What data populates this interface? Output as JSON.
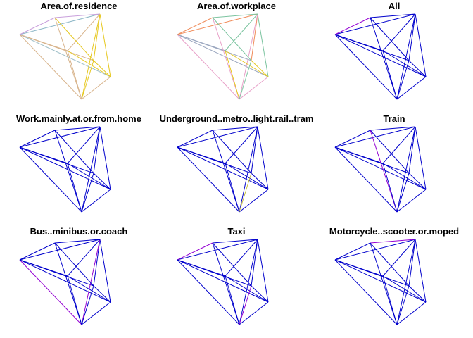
{
  "chart_data": {
    "type": "network-small-multiples",
    "layout": "3x3 grid",
    "node_count": 7,
    "default_edge_color": "#0000CC",
    "highlight_color": "#9400D3",
    "panels": [
      {
        "title": "Area.of.residence",
        "edges": [
          {
            "from": 0,
            "to": 1,
            "color": "#8FB8C8"
          },
          {
            "from": 0,
            "to": 2,
            "color": "#C9A0DC"
          },
          {
            "from": 0,
            "to": 3,
            "color": "#9FBFC8"
          },
          {
            "from": 0,
            "to": 4,
            "color": "#D8B48C"
          },
          {
            "from": 0,
            "to": 5,
            "color": "#D8B48C"
          },
          {
            "from": 0,
            "to": 6,
            "color": "#D8B48C"
          },
          {
            "from": 1,
            "to": 2,
            "color": "#C9A0DC"
          },
          {
            "from": 1,
            "to": 3,
            "color": "#E6C820"
          },
          {
            "from": 1,
            "to": 4,
            "color": "#E6C820"
          },
          {
            "from": 1,
            "to": 5,
            "color": "#E6C820"
          },
          {
            "from": 1,
            "to": 6,
            "color": "#D8B48C"
          },
          {
            "from": 2,
            "to": 4,
            "color": "#E6C820"
          },
          {
            "from": 2,
            "to": 5,
            "color": "#D8B48C"
          },
          {
            "from": 3,
            "to": 4,
            "color": "#E6C820"
          },
          {
            "from": 3,
            "to": 5,
            "color": "#D8B48C"
          },
          {
            "from": 3,
            "to": 6,
            "color": "#E6C820"
          },
          {
            "from": 4,
            "to": 5,
            "color": "#E6C820"
          },
          {
            "from": 5,
            "to": 6,
            "color": "#D8B48C"
          }
        ]
      },
      {
        "title": "Area.of.workplace",
        "edges": [
          {
            "from": 0,
            "to": 1,
            "color": "#F08C5A"
          },
          {
            "from": 0,
            "to": 2,
            "color": "#F08C5A"
          },
          {
            "from": 0,
            "to": 3,
            "color": "#9CA8C0"
          },
          {
            "from": 0,
            "to": 4,
            "color": "#9CA8C0"
          },
          {
            "from": 0,
            "to": 5,
            "color": "#E8A0C8"
          },
          {
            "from": 0,
            "to": 6,
            "color": "#9CA8C0"
          },
          {
            "from": 1,
            "to": 2,
            "color": "#7CC4A0"
          },
          {
            "from": 1,
            "to": 3,
            "color": "#7CC4A0"
          },
          {
            "from": 1,
            "to": 4,
            "color": "#F08C5A"
          },
          {
            "from": 1,
            "to": 5,
            "color": "#E8A0C8"
          },
          {
            "from": 1,
            "to": 6,
            "color": "#7CC4A0"
          },
          {
            "from": 2,
            "to": 4,
            "color": "#7CC4A0"
          },
          {
            "from": 2,
            "to": 5,
            "color": "#E8A0C8"
          },
          {
            "from": 3,
            "to": 4,
            "color": "#E6C820"
          },
          {
            "from": 3,
            "to": 5,
            "color": "#E8A0C8"
          },
          {
            "from": 3,
            "to": 6,
            "color": "#E6C820"
          },
          {
            "from": 4,
            "to": 5,
            "color": "#7CC4A0"
          },
          {
            "from": 5,
            "to": 6,
            "color": "#E6C820"
          }
        ]
      },
      {
        "title": "All",
        "edges": [
          {
            "from": 0,
            "to": 1,
            "color": "#0000CC"
          },
          {
            "from": 0,
            "to": 2,
            "color": "#9400D3"
          },
          {
            "from": 0,
            "to": 3,
            "color": "#0000CC"
          },
          {
            "from": 0,
            "to": 4,
            "color": "#0000CC"
          },
          {
            "from": 0,
            "to": 5,
            "color": "#0000CC"
          },
          {
            "from": 0,
            "to": 6,
            "color": "#0000CC"
          },
          {
            "from": 1,
            "to": 2,
            "color": "#0000CC"
          },
          {
            "from": 1,
            "to": 3,
            "color": "#0000CC"
          },
          {
            "from": 1,
            "to": 4,
            "color": "#0000CC"
          },
          {
            "from": 1,
            "to": 5,
            "color": "#0000CC"
          },
          {
            "from": 1,
            "to": 6,
            "color": "#0000CC"
          },
          {
            "from": 2,
            "to": 4,
            "color": "#0000CC"
          },
          {
            "from": 2,
            "to": 5,
            "color": "#0000CC"
          },
          {
            "from": 3,
            "to": 4,
            "color": "#0000CC"
          },
          {
            "from": 3,
            "to": 5,
            "color": "#0000CC"
          },
          {
            "from": 3,
            "to": 6,
            "color": "#0000CC"
          },
          {
            "from": 4,
            "to": 5,
            "color": "#0000CC"
          },
          {
            "from": 5,
            "to": 6,
            "color": "#0000CC"
          }
        ]
      },
      {
        "title": "Work.mainly.at.or.from.home",
        "edges": [
          {
            "from": 0,
            "to": 1,
            "color": "#0000CC"
          },
          {
            "from": 0,
            "to": 2,
            "color": "#0000CC"
          },
          {
            "from": 0,
            "to": 3,
            "color": "#0000CC"
          },
          {
            "from": 0,
            "to": 4,
            "color": "#0000CC"
          },
          {
            "from": 0,
            "to": 5,
            "color": "#0000CC"
          },
          {
            "from": 0,
            "to": 6,
            "color": "#0000CC"
          },
          {
            "from": 1,
            "to": 2,
            "color": "#0000CC"
          },
          {
            "from": 1,
            "to": 3,
            "color": "#0000CC"
          },
          {
            "from": 1,
            "to": 4,
            "color": "#0000CC"
          },
          {
            "from": 1,
            "to": 5,
            "color": "#0000CC"
          },
          {
            "from": 1,
            "to": 6,
            "color": "#0000CC"
          },
          {
            "from": 2,
            "to": 4,
            "color": "#0000CC"
          },
          {
            "from": 2,
            "to": 5,
            "color": "#0000CC"
          },
          {
            "from": 3,
            "to": 4,
            "color": "#0000CC"
          },
          {
            "from": 3,
            "to": 5,
            "color": "#0000CC"
          },
          {
            "from": 3,
            "to": 6,
            "color": "#0000CC"
          },
          {
            "from": 4,
            "to": 5,
            "color": "#0000CC"
          },
          {
            "from": 5,
            "to": 6,
            "color": "#0000CC"
          }
        ]
      },
      {
        "title": "Underground..metro..light.rail..tram",
        "edges": [
          {
            "from": 0,
            "to": 1,
            "color": "#0000CC"
          },
          {
            "from": 0,
            "to": 2,
            "color": "#0000CC"
          },
          {
            "from": 0,
            "to": 3,
            "color": "#0000CC"
          },
          {
            "from": 0,
            "to": 4,
            "color": "#0000CC"
          },
          {
            "from": 0,
            "to": 5,
            "color": "#0000CC"
          },
          {
            "from": 0,
            "to": 6,
            "color": "#0000CC"
          },
          {
            "from": 1,
            "to": 2,
            "color": "#0000CC"
          },
          {
            "from": 1,
            "to": 3,
            "color": "#0000CC"
          },
          {
            "from": 1,
            "to": 4,
            "color": "#0000CC"
          },
          {
            "from": 1,
            "to": 5,
            "color": "#0000CC"
          },
          {
            "from": 1,
            "to": 6,
            "color": "#0000CC"
          },
          {
            "from": 2,
            "to": 4,
            "color": "#0000CC"
          },
          {
            "from": 2,
            "to": 5,
            "color": "#0000CC"
          },
          {
            "from": 3,
            "to": 4,
            "color": "#0000CC"
          },
          {
            "from": 3,
            "to": 5,
            "color": "#0000CC"
          },
          {
            "from": 3,
            "to": 6,
            "color": "#0000CC"
          },
          {
            "from": 4,
            "to": 5,
            "color": "#C8C040"
          },
          {
            "from": 5,
            "to": 6,
            "color": "#0000CC"
          }
        ]
      },
      {
        "title": "Train",
        "edges": [
          {
            "from": 0,
            "to": 1,
            "color": "#0000CC"
          },
          {
            "from": 0,
            "to": 2,
            "color": "#0000CC"
          },
          {
            "from": 0,
            "to": 3,
            "color": "#0000CC"
          },
          {
            "from": 0,
            "to": 4,
            "color": "#0000CC"
          },
          {
            "from": 0,
            "to": 5,
            "color": "#0000CC"
          },
          {
            "from": 0,
            "to": 6,
            "color": "#0000CC"
          },
          {
            "from": 1,
            "to": 2,
            "color": "#0000CC"
          },
          {
            "from": 1,
            "to": 3,
            "color": "#0000CC"
          },
          {
            "from": 1,
            "to": 4,
            "color": "#0000CC"
          },
          {
            "from": 1,
            "to": 5,
            "color": "#0000CC"
          },
          {
            "from": 1,
            "to": 6,
            "color": "#0000CC"
          },
          {
            "from": 2,
            "to": 4,
            "color": "#0000CC"
          },
          {
            "from": 2,
            "to": 5,
            "color": "#9400D3"
          },
          {
            "from": 3,
            "to": 4,
            "color": "#0000CC"
          },
          {
            "from": 3,
            "to": 5,
            "color": "#0000CC"
          },
          {
            "from": 3,
            "to": 6,
            "color": "#0000CC"
          },
          {
            "from": 4,
            "to": 5,
            "color": "#0000CC"
          },
          {
            "from": 5,
            "to": 6,
            "color": "#0000CC"
          }
        ]
      },
      {
        "title": "Bus..minibus.or.coach",
        "edges": [
          {
            "from": 0,
            "to": 1,
            "color": "#0000CC"
          },
          {
            "from": 0,
            "to": 2,
            "color": "#0000CC"
          },
          {
            "from": 0,
            "to": 3,
            "color": "#0000CC"
          },
          {
            "from": 0,
            "to": 4,
            "color": "#0000CC"
          },
          {
            "from": 0,
            "to": 5,
            "color": "#9400D3"
          },
          {
            "from": 0,
            "to": 6,
            "color": "#0000CC"
          },
          {
            "from": 1,
            "to": 2,
            "color": "#0000CC"
          },
          {
            "from": 1,
            "to": 3,
            "color": "#0000CC"
          },
          {
            "from": 1,
            "to": 4,
            "color": "#0000CC"
          },
          {
            "from": 1,
            "to": 5,
            "color": "#9400D3"
          },
          {
            "from": 1,
            "to": 6,
            "color": "#0000CC"
          },
          {
            "from": 2,
            "to": 4,
            "color": "#0000CC"
          },
          {
            "from": 2,
            "to": 5,
            "color": "#0000CC"
          },
          {
            "from": 3,
            "to": 4,
            "color": "#0000CC"
          },
          {
            "from": 3,
            "to": 5,
            "color": "#0000CC"
          },
          {
            "from": 3,
            "to": 6,
            "color": "#0000CC"
          },
          {
            "from": 4,
            "to": 5,
            "color": "#0000CC"
          },
          {
            "from": 5,
            "to": 6,
            "color": "#0000CC"
          }
        ]
      },
      {
        "title": "Taxi",
        "edges": [
          {
            "from": 0,
            "to": 1,
            "color": "#0000CC"
          },
          {
            "from": 0,
            "to": 2,
            "color": "#9400D3"
          },
          {
            "from": 0,
            "to": 3,
            "color": "#0000CC"
          },
          {
            "from": 0,
            "to": 4,
            "color": "#0000CC"
          },
          {
            "from": 0,
            "to": 5,
            "color": "#0000CC"
          },
          {
            "from": 0,
            "to": 6,
            "color": "#0000CC"
          },
          {
            "from": 1,
            "to": 2,
            "color": "#0000CC"
          },
          {
            "from": 1,
            "to": 3,
            "color": "#0000CC"
          },
          {
            "from": 1,
            "to": 4,
            "color": "#0000CC"
          },
          {
            "from": 1,
            "to": 5,
            "color": "#0000CC"
          },
          {
            "from": 1,
            "to": 6,
            "color": "#0000CC"
          },
          {
            "from": 2,
            "to": 4,
            "color": "#0000CC"
          },
          {
            "from": 2,
            "to": 5,
            "color": "#0000CC"
          },
          {
            "from": 3,
            "to": 4,
            "color": "#0000CC"
          },
          {
            "from": 3,
            "to": 5,
            "color": "#0000CC"
          },
          {
            "from": 3,
            "to": 6,
            "color": "#0000CC"
          },
          {
            "from": 4,
            "to": 5,
            "color": "#9400D3"
          },
          {
            "from": 5,
            "to": 6,
            "color": "#0000CC"
          }
        ]
      },
      {
        "title": "Motorcycle..scooter.or.moped",
        "edges": [
          {
            "from": 0,
            "to": 1,
            "color": "#0000CC"
          },
          {
            "from": 0,
            "to": 2,
            "color": "#0000CC"
          },
          {
            "from": 0,
            "to": 3,
            "color": "#0000CC"
          },
          {
            "from": 0,
            "to": 4,
            "color": "#0000CC"
          },
          {
            "from": 0,
            "to": 5,
            "color": "#0000CC"
          },
          {
            "from": 0,
            "to": 6,
            "color": "#0000CC"
          },
          {
            "from": 1,
            "to": 2,
            "color": "#9400D3"
          },
          {
            "from": 1,
            "to": 3,
            "color": "#0000CC"
          },
          {
            "from": 1,
            "to": 4,
            "color": "#0000CC"
          },
          {
            "from": 1,
            "to": 5,
            "color": "#0000CC"
          },
          {
            "from": 1,
            "to": 6,
            "color": "#0000CC"
          },
          {
            "from": 2,
            "to": 4,
            "color": "#0000CC"
          },
          {
            "from": 2,
            "to": 5,
            "color": "#0000CC"
          },
          {
            "from": 3,
            "to": 4,
            "color": "#0000CC"
          },
          {
            "from": 3,
            "to": 5,
            "color": "#0000CC"
          },
          {
            "from": 3,
            "to": 6,
            "color": "#0000CC"
          },
          {
            "from": 4,
            "to": 5,
            "color": "#0000CC"
          },
          {
            "from": 5,
            "to": 6,
            "color": "#0000CC"
          }
        ]
      }
    ]
  }
}
